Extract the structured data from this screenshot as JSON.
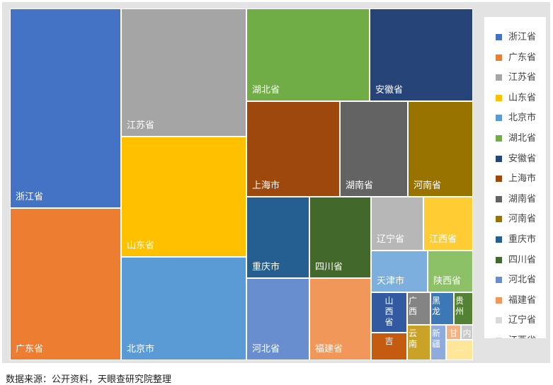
{
  "chart_data": {
    "type": "treemap",
    "note_source": "数据来源：公开资料，天眼查研究院整理",
    "items": [
      {
        "name": "浙江省",
        "color": "#4472C4",
        "value": 1
      },
      {
        "name": "广东省",
        "color": "#ED7D31",
        "value": 1
      },
      {
        "name": "江苏省",
        "color": "#A5A5A5",
        "value": 1
      },
      {
        "name": "山东省",
        "color": "#FFC000",
        "value": 1
      },
      {
        "name": "北京市",
        "color": "#5B9BD5",
        "value": 1
      },
      {
        "name": "湖北省",
        "color": "#70AD47",
        "value": 1
      },
      {
        "name": "安徽省",
        "color": "#264478",
        "value": 1
      },
      {
        "name": "上海市",
        "color": "#9E480E",
        "value": 1
      },
      {
        "name": "湖南省",
        "color": "#636363",
        "value": 1
      },
      {
        "name": "河南省",
        "color": "#997300",
        "value": 1
      },
      {
        "name": "重庆市",
        "color": "#255E91",
        "value": 1
      },
      {
        "name": "四川省",
        "color": "#43682B",
        "value": 1
      },
      {
        "name": "河北省",
        "color": "#698ED0",
        "value": 1
      },
      {
        "name": "福建省",
        "color": "#F1975A",
        "value": 1
      },
      {
        "name": "辽宁省",
        "color": "#B7B7B7",
        "value": 1
      },
      {
        "name": "江西省",
        "color": "#FFCD33",
        "value": 1
      },
      {
        "name": "天津市",
        "color": "#7CAFDD",
        "value": 1
      },
      {
        "name": "陕西省",
        "color": "#8CC168",
        "value": 1
      },
      {
        "name": "山西省",
        "color": "#335AA1",
        "value": 1
      },
      {
        "name": "广西",
        "color": "#848484",
        "value": 1
      },
      {
        "name": "黑龙",
        "color": "#3C78B5",
        "value": 1
      },
      {
        "name": "贵州",
        "color": "#548235",
        "value": 1
      },
      {
        "name": "吉",
        "color": "#C55A11",
        "value": 1
      },
      {
        "name": "云南",
        "color": "#C9A227",
        "value": 1
      },
      {
        "name": "新疆",
        "color": "#8FAADC",
        "value": 1
      },
      {
        "name": "甘",
        "color": "#F4B183",
        "value": 1
      },
      {
        "name": "内",
        "color": "#C9C9C9",
        "value": 1
      },
      {
        "name": "…",
        "color": "#FFE699",
        "value": 1
      }
    ]
  },
  "legend": [
    {
      "label": "浙江省",
      "color": "#4472C4"
    },
    {
      "label": "广东省",
      "color": "#ED7D31"
    },
    {
      "label": "江苏省",
      "color": "#A5A5A5"
    },
    {
      "label": "山东省",
      "color": "#FFC000"
    },
    {
      "label": "北京市",
      "color": "#5B9BD5"
    },
    {
      "label": "湖北省",
      "color": "#70AD47"
    },
    {
      "label": "安徽省",
      "color": "#264478"
    },
    {
      "label": "上海市",
      "color": "#9E480E"
    },
    {
      "label": "湖南省",
      "color": "#636363"
    },
    {
      "label": "河南省",
      "color": "#997300"
    },
    {
      "label": "重庆市",
      "color": "#255E91"
    },
    {
      "label": "四川省",
      "color": "#43682B"
    },
    {
      "label": "河北省",
      "color": "#698ED0"
    },
    {
      "label": "福建省",
      "color": "#F1975A"
    },
    {
      "label": "辽宁省",
      "color": "#D9D9D9"
    },
    {
      "label": "江西省",
      "color": "#FFD966"
    }
  ],
  "source": "数据来源：公开资料，天眼查研究院整理"
}
